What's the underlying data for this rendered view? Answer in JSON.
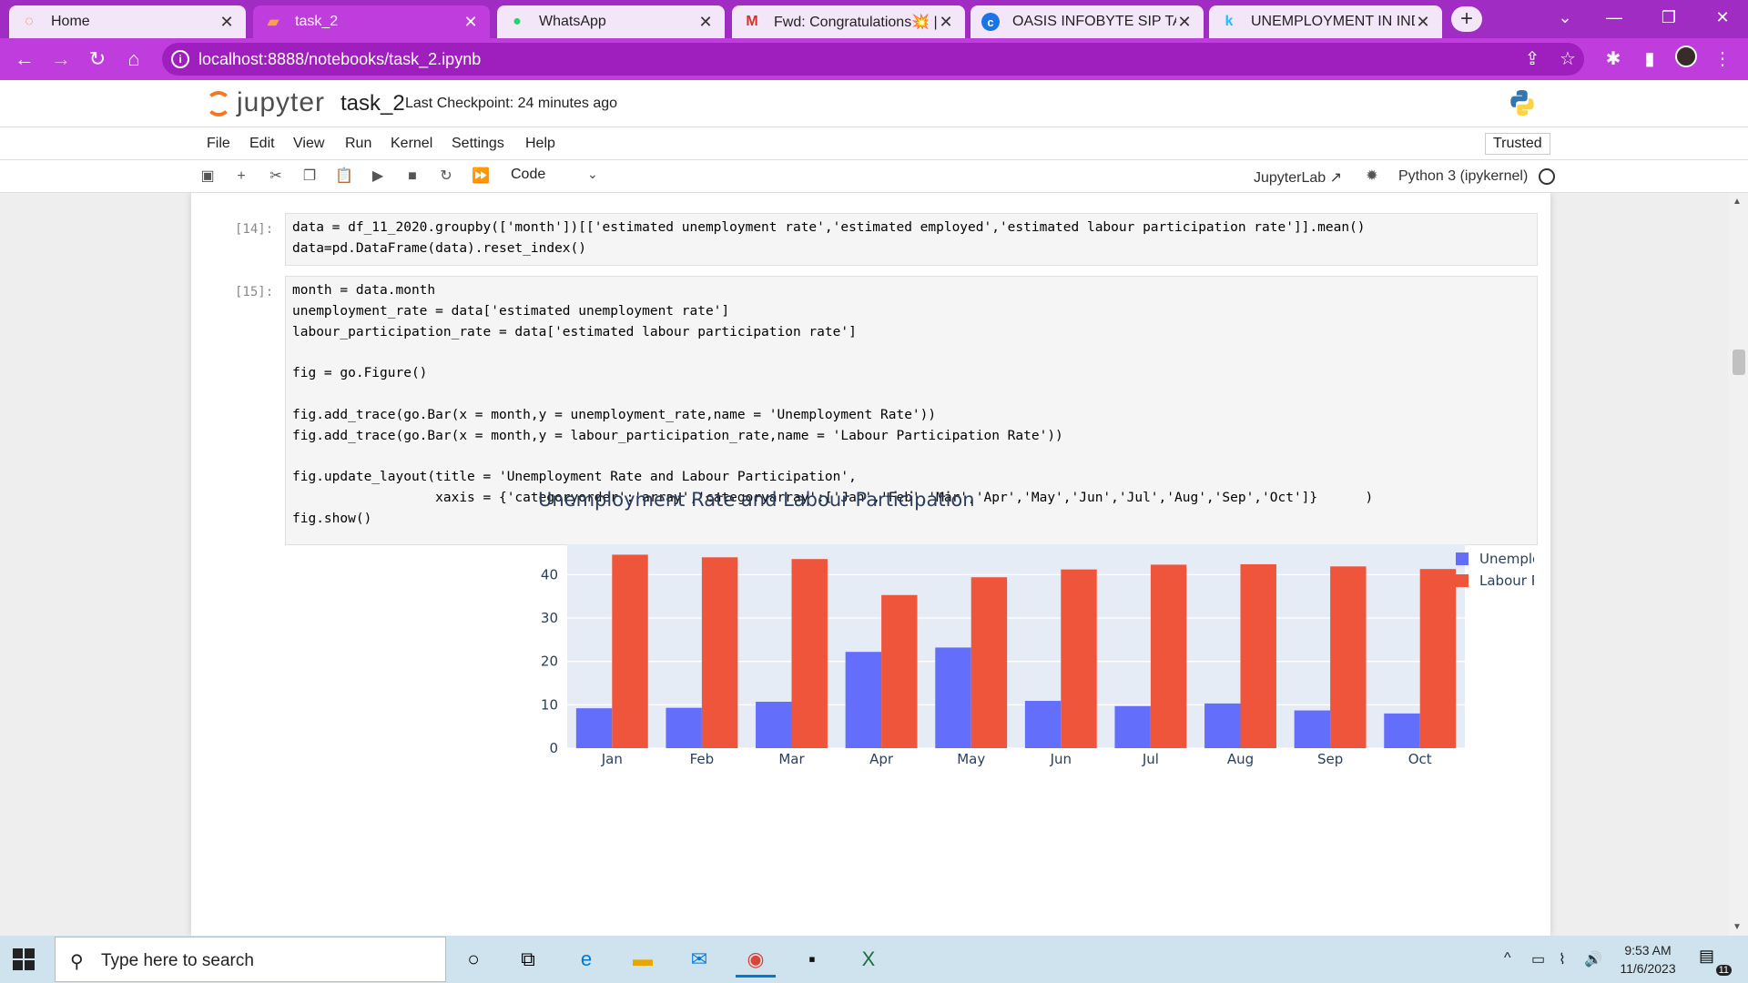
{
  "browser": {
    "tabs": [
      {
        "title": "Home",
        "icon": "jupyter-icon"
      },
      {
        "title": "task_2",
        "icon": "jupyter-notebook-icon"
      },
      {
        "title": "WhatsApp",
        "icon": "whatsapp-icon"
      },
      {
        "title": "Fwd: Congratulations💥 ||",
        "icon": "gmail-icon"
      },
      {
        "title": "OASIS INFOBYTE SIP TASK",
        "icon": "c-app-icon"
      },
      {
        "title": "UNEMPLOYMENT IN INDIA",
        "icon": "kaggle-icon"
      }
    ],
    "active_tab": 1,
    "url": "localhost:8888/notebooks/task_2.ipynb",
    "colors": {
      "frame": "#a02cc4",
      "active_tab": "#bf3ddc"
    }
  },
  "jupyter": {
    "logo_text": "jupyter",
    "notebook_name": "task_2",
    "checkpoint": "Last Checkpoint: 24 minutes ago",
    "menu": [
      "File",
      "Edit",
      "View",
      "Run",
      "Kernel",
      "Settings",
      "Help"
    ],
    "trusted": "Trusted",
    "cell_type": "Code",
    "jupyterlab_link": "JupyterLab",
    "kernel": "Python 3 (ipykernel)"
  },
  "cells": [
    {
      "prompt": "[14]:",
      "lines": [
        "data = df_11_2020.groupby(['month'])[['estimated unemployment rate','estimated employed','estimated labour participation rate']].mean()",
        "data=pd.DataFrame(data).reset_index()"
      ]
    },
    {
      "prompt": "[15]:",
      "lines": [
        "month = data.month",
        "unemployment_rate = data['estimated unemployment rate']",
        "labour_participation_rate = data['estimated labour participation rate']",
        "",
        "fig = go.Figure()",
        "",
        "fig.add_trace(go.Bar(x = month,y = unemployment_rate,name = 'Unemployment Rate'))",
        "fig.add_trace(go.Bar(x = month,y = labour_participation_rate,name = 'Labour Participation Rate'))",
        "",
        "fig.update_layout(title = 'Unemployment Rate and Labour Participation',",
        "                  xaxis = {'categoryorder':'array','categoryarray':['Jan','Feb','Mar','Apr','May','Jun','Jul','Aug','Sep','Oct']}      )",
        "fig.show()"
      ]
    }
  ],
  "chart_data": {
    "type": "bar",
    "title": "Unemployment Rate and Labour Participation",
    "categories": [
      "Jan",
      "Feb",
      "Mar",
      "Apr",
      "May",
      "Jun",
      "Jul",
      "Aug",
      "Sep",
      "Oct"
    ],
    "series": [
      {
        "name": "Unemployment Rate",
        "color": "#636efa",
        "values": [
          9.2,
          9.3,
          10.7,
          22.2,
          23.2,
          10.9,
          9.7,
          10.3,
          8.7,
          8.0
        ]
      },
      {
        "name": "Labour Participation Rate",
        "color": "#ef553b",
        "values": [
          44.6,
          44.0,
          43.6,
          35.3,
          39.4,
          41.2,
          42.3,
          42.4,
          41.9,
          41.3
        ]
      }
    ],
    "yticks": [
      0,
      10,
      20,
      30,
      40
    ],
    "ylim": [
      0,
      47
    ],
    "grid": true,
    "legend": "top-right",
    "plot_bg": "#e5ecf6"
  },
  "taskbar": {
    "search_placeholder": "Type here to search",
    "time": "9:53 AM",
    "date": "11/6/2023",
    "notifications": "11"
  }
}
